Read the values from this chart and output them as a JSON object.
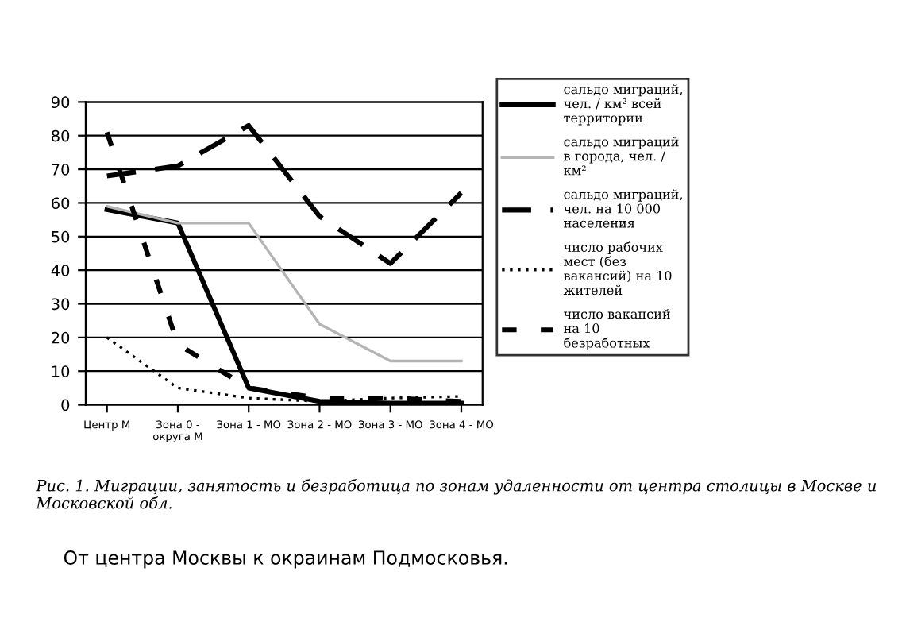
{
  "chart_data": {
    "type": "line",
    "categories": [
      "Центр М",
      "Зона 0 - округа М",
      "Зона 1 - МО",
      "Зона 2 - МО",
      "Зона 3 - МО",
      "Зона 4 - МО"
    ],
    "series": [
      {
        "name": "сальдо миграций, чел. / км² всей территории",
        "color": "#000000",
        "line_style": "solid",
        "values": [
          58,
          54,
          5,
          1,
          0.5,
          0.5
        ]
      },
      {
        "name": "сальдо миграций в города, чел. / км²",
        "color": "#b4b4b4",
        "line_style": "solid",
        "values": [
          59,
          54,
          54,
          24,
          13,
          13
        ]
      },
      {
        "name": "сальдо миграций, чел. на 10 000 населения",
        "color": "#000000",
        "line_style": "dashed",
        "values": [
          68,
          71,
          83,
          56,
          42,
          63
        ]
      },
      {
        "name": "число рабочих мест (без вакансий) на 10 жителей",
        "color": "#000000",
        "line_style": "dotted",
        "values": [
          20,
          5,
          2,
          1,
          2,
          2.5
        ]
      },
      {
        "name": "число вакансий на 10 безработных",
        "color": "#000000",
        "line_style": "dashed",
        "values": [
          81,
          18,
          5,
          2,
          2,
          1
        ]
      }
    ],
    "ylim": [
      0,
      90
    ],
    "yticks": [
      0,
      10,
      20,
      30,
      40,
      50,
      60,
      70,
      80,
      90
    ],
    "grid": "y",
    "legend": "right",
    "marker": "none",
    "annotations": [
      "Рис. 1. Миграции, занятость и безработица по зонам удаленности от центра столицы в Москве и Московской обл.",
      "От центра Москвы к окраинам Подмосковья."
    ]
  }
}
